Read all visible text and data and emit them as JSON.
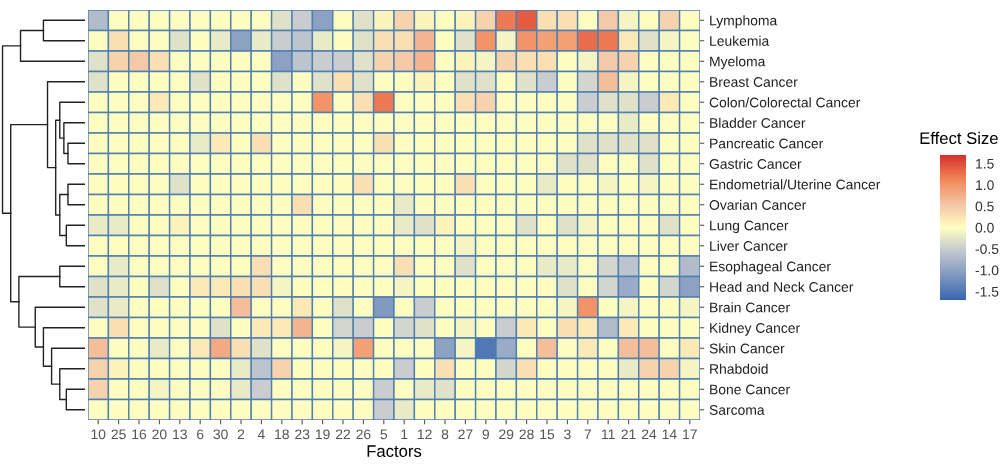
{
  "chart_data": {
    "type": "heatmap",
    "xlabel": "Factors",
    "clabel": "Effect Size",
    "categories": [
      "10",
      "25",
      "16",
      "20",
      "13",
      "6",
      "30",
      "2",
      "4",
      "18",
      "23",
      "19",
      "22",
      "26",
      "5",
      "1",
      "12",
      "8",
      "27",
      "9",
      "29",
      "28",
      "15",
      "3",
      "7",
      "11",
      "21",
      "24",
      "14",
      "17"
    ],
    "y_categories": [
      "Lymphoma",
      "Leukemia",
      "Myeloma",
      "Breast Cancer",
      "Colon/Colorectal Cancer",
      "Bladder Cancer",
      "Pancreatic Cancer",
      "Gastric Cancer",
      "Endometrial/Uterine Cancer",
      "Ovarian Cancer",
      "Lung Cancer",
      "Liver Cancer",
      "Esophageal Cancer",
      "Head and Neck Cancer",
      "Brain Cancer",
      "Kidney Cancer",
      "Skin Cancer",
      "Rhabdoid",
      "Bone Cancer",
      "Sarcoma"
    ],
    "cells": [
      [
        -0.7,
        0,
        0,
        0,
        0,
        0,
        0,
        0,
        0,
        -0.3,
        -0.5,
        -1.0,
        0,
        -0.3,
        0.1,
        0.4,
        0.1,
        0,
        0.1,
        0.4,
        1.2,
        1.4,
        0.3,
        0.3,
        0,
        0.5,
        -0.1,
        0,
        0.4,
        0
      ],
      [
        0,
        0.3,
        0,
        0,
        -0.3,
        0,
        -0.2,
        -1.0,
        -0.2,
        -0.5,
        -0.6,
        -0.2,
        0,
        -0.3,
        0.3,
        0.3,
        0.7,
        0,
        -0.3,
        1.0,
        -0.1,
        1.0,
        0.9,
        0.9,
        1.3,
        1.2,
        0.2,
        -0.3,
        -0.1,
        0
      ],
      [
        -0.3,
        0.4,
        0.5,
        0.3,
        0,
        0,
        0,
        0,
        0,
        -1.0,
        -0.6,
        -0.5,
        -0.5,
        -0.3,
        0.4,
        0.5,
        0.7,
        0,
        0.1,
        -0.1,
        0.4,
        0.3,
        0.3,
        0,
        -0.1,
        0.5,
        0.4,
        0,
        0,
        0
      ],
      [
        -0.3,
        0,
        0,
        0,
        0,
        -0.3,
        0,
        0,
        0,
        -0.3,
        0,
        -0.3,
        0.3,
        -0.3,
        0,
        0,
        0.1,
        0,
        -0.3,
        -0.3,
        0,
        -0.3,
        -0.5,
        0,
        -0.4,
        0.6,
        -0.1,
        0,
        0,
        0
      ],
      [
        0,
        0,
        0,
        0.2,
        0,
        0,
        0,
        0,
        0,
        0,
        0,
        1.0,
        0,
        0.3,
        1.2,
        0,
        0,
        0,
        0.3,
        0.4,
        0,
        0,
        0,
        0,
        -0.5,
        -0.3,
        -0.3,
        -0.5,
        0.2,
        0
      ],
      [
        0,
        0,
        0,
        0,
        0,
        0,
        0,
        0,
        0,
        0,
        0,
        0,
        0,
        0,
        0,
        0,
        0,
        0,
        0,
        0,
        0,
        0,
        0,
        0,
        0,
        0,
        -0.2,
        0,
        0,
        0
      ],
      [
        0,
        0,
        0,
        0,
        0,
        -0.2,
        0.2,
        0,
        0.3,
        0,
        0,
        0,
        0,
        0,
        0.3,
        0,
        0,
        0,
        0,
        0,
        0,
        0,
        0,
        0,
        -0.3,
        -0.3,
        -0.3,
        -0.3,
        0,
        0
      ],
      [
        0,
        0,
        0,
        0,
        0,
        0,
        0,
        0,
        0,
        0,
        0,
        0,
        0,
        0,
        0,
        0,
        0,
        0,
        0,
        0,
        0,
        0,
        0,
        -0.3,
        -0.3,
        0,
        0,
        -0.3,
        0,
        0
      ],
      [
        0,
        0,
        0,
        0,
        -0.3,
        0,
        0,
        0,
        0,
        0,
        0,
        0,
        0,
        0.3,
        0,
        0,
        0,
        0,
        0.3,
        0,
        0,
        0,
        -0.2,
        0,
        0,
        -0.1,
        0,
        -0.1,
        0,
        0
      ],
      [
        0,
        0,
        0,
        0,
        0,
        0,
        0,
        0,
        0,
        0,
        0.3,
        0,
        0,
        0,
        0,
        -0.2,
        0,
        0,
        0,
        0,
        0,
        0,
        0,
        0,
        0,
        0,
        0,
        0,
        0,
        0
      ],
      [
        -0.2,
        -0.2,
        0,
        0,
        0.1,
        0,
        0,
        0,
        0,
        0,
        0,
        0,
        0,
        0,
        0,
        -0.2,
        -0.3,
        0.1,
        0,
        0,
        0,
        -0.3,
        0,
        -0.3,
        -0.1,
        0,
        0,
        0,
        -0.3,
        0
      ],
      [
        0,
        0,
        0,
        0,
        0,
        0,
        0,
        0,
        0,
        0,
        0,
        0,
        0,
        0,
        0,
        0,
        0,
        0,
        -0.1,
        0,
        0,
        0,
        0,
        0,
        0,
        0,
        0,
        0,
        0,
        0
      ],
      [
        0,
        -0.2,
        0,
        0,
        0,
        0,
        0,
        0,
        0.3,
        0,
        0,
        0,
        0,
        0,
        0,
        0.3,
        0,
        0,
        -0.3,
        0,
        0,
        0,
        -0.2,
        -0.2,
        0,
        -0.4,
        -0.6,
        0,
        0,
        -0.7
      ],
      [
        -0.3,
        -0.2,
        0,
        -0.3,
        0,
        0.2,
        0.2,
        0.3,
        0.3,
        -0.1,
        0,
        0,
        0,
        0,
        0,
        -0.1,
        0,
        0,
        0,
        0,
        0,
        0,
        0,
        -0.3,
        0,
        -0.4,
        -0.9,
        0,
        -0.4,
        -1.0
      ],
      [
        -0.3,
        -0.2,
        0,
        0,
        0,
        0,
        0,
        0.6,
        0,
        0,
        0.2,
        0,
        -0.3,
        0,
        -1.1,
        0,
        -0.5,
        0,
        0,
        0,
        0,
        0,
        0,
        -0.1,
        1.0,
        0,
        -0.1,
        0,
        0,
        -0.1
      ],
      [
        0,
        0.3,
        0,
        0,
        0,
        0,
        -0.3,
        0,
        0.2,
        0.2,
        0.7,
        0,
        -0.4,
        -0.5,
        0,
        -0.4,
        -0.3,
        0,
        -0.1,
        0,
        -0.5,
        0.2,
        0,
        0.3,
        0.2,
        -0.7,
        0.2,
        0,
        0,
        0
      ],
      [
        0.6,
        0,
        0,
        -0.2,
        0,
        0.2,
        0.8,
        0.3,
        -0.3,
        0,
        0,
        0,
        -0.1,
        0.9,
        0,
        0,
        0,
        -1.0,
        -0.1,
        -1.5,
        -0.9,
        0,
        0.6,
        0,
        0.2,
        0,
        0.6,
        0.6,
        0,
        0.2
      ],
      [
        0.4,
        0.1,
        0,
        0,
        0,
        0,
        0,
        -0.2,
        -0.6,
        0.4,
        0,
        0,
        0,
        0,
        0,
        -0.5,
        0,
        0.3,
        0,
        0,
        -0.4,
        0.3,
        0,
        0,
        0,
        0,
        -0.2,
        0.4,
        0.4,
        -0.1
      ],
      [
        0.4,
        0,
        0,
        -0.1,
        0,
        0,
        0,
        -0.2,
        -0.5,
        0,
        0,
        0,
        0,
        0,
        -0.5,
        0,
        -0.2,
        -0.3,
        0,
        0,
        0,
        0,
        0,
        0,
        0,
        0,
        0,
        0,
        0,
        0
      ],
      [
        0,
        0,
        0,
        0,
        0,
        0,
        0,
        0,
        0,
        0,
        0,
        0,
        0,
        0,
        -0.5,
        -0.2,
        0,
        0,
        0,
        0,
        0,
        0,
        0,
        0,
        0,
        0,
        0,
        0,
        0,
        0
      ]
    ],
    "clim": [
      -1.7,
      1.7
    ],
    "cticks": [
      {
        "value": -1.5,
        "label": "-1.5"
      },
      {
        "value": -1.0,
        "label": "-1.0"
      },
      {
        "value": -0.5,
        "label": "-0.5"
      },
      {
        "value": 0.0,
        "label": "0.0"
      },
      {
        "value": 0.5,
        "label": "0.5"
      },
      {
        "value": 1.0,
        "label": "1.0"
      },
      {
        "value": 1.5,
        "label": "1.5"
      }
    ]
  }
}
